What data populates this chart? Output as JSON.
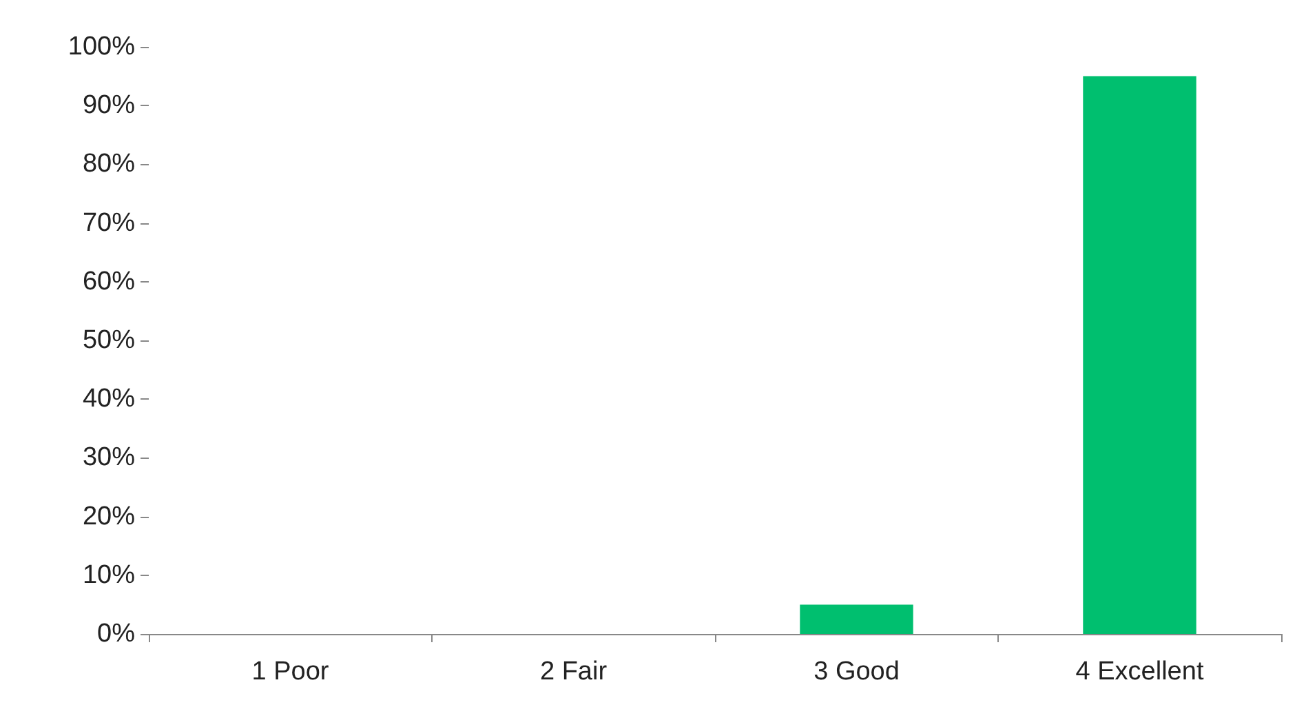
{
  "chart_data": {
    "type": "bar",
    "categories": [
      "1 Poor",
      "2 Fair",
      "3 Good",
      "4 Excellent"
    ],
    "values": [
      0,
      0,
      5,
      95
    ],
    "color": "#00bf6f",
    "ylim": [
      0,
      100
    ],
    "yticks": [
      {
        "value": 0,
        "label": "0%"
      },
      {
        "value": 10,
        "label": "10%"
      },
      {
        "value": 20,
        "label": "20%"
      },
      {
        "value": 30,
        "label": "30%"
      },
      {
        "value": 40,
        "label": "40%"
      },
      {
        "value": 50,
        "label": "50%"
      },
      {
        "value": 60,
        "label": "60%"
      },
      {
        "value": 70,
        "label": "70%"
      },
      {
        "value": 80,
        "label": "80%"
      },
      {
        "value": 90,
        "label": "90%"
      },
      {
        "value": 100,
        "label": "100%"
      }
    ],
    "grid": false
  }
}
